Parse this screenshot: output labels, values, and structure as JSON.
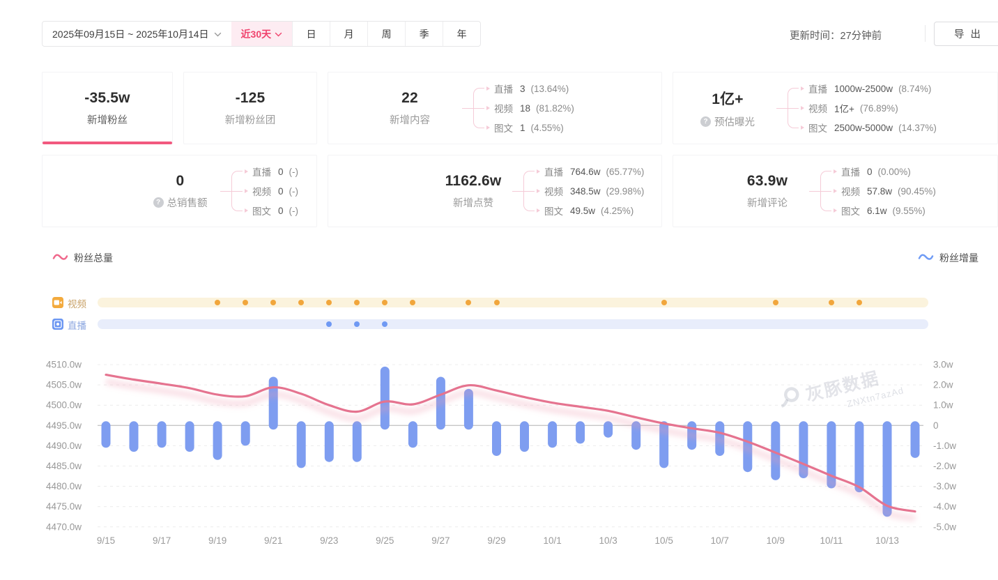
{
  "toolbar": {
    "date_range": "2025年09月15日 ~ 2025年10月14日",
    "quick_range": "近30天",
    "period_tabs": [
      "日",
      "月",
      "周",
      "季",
      "年"
    ],
    "update_time": "更新时间：27分钟前",
    "export_label": "导出"
  },
  "stats": {
    "row1": [
      {
        "value": "-35.5w",
        "label": "新增粉丝",
        "active": true
      },
      {
        "value": "-125",
        "label": "新增粉丝团"
      },
      {
        "value": "22",
        "label": "新增内容",
        "breakdown": [
          {
            "name": "直播",
            "value": "3",
            "pct": "(13.64%)"
          },
          {
            "name": "视频",
            "value": "18",
            "pct": "(81.82%)"
          },
          {
            "name": "图文",
            "value": "1",
            "pct": "(4.55%)"
          }
        ]
      },
      {
        "value": "1亿+",
        "label": "预估曝光",
        "help": true,
        "breakdown": [
          {
            "name": "直播",
            "value": "1000w-2500w",
            "pct": "(8.74%)"
          },
          {
            "name": "视频",
            "value": "1亿+",
            "pct": "(76.89%)"
          },
          {
            "name": "图文",
            "value": "2500w-5000w",
            "pct": "(14.37%)"
          }
        ]
      }
    ],
    "row2": [
      {
        "value": "0",
        "label": "总销售额",
        "help": true,
        "breakdown": [
          {
            "name": "直播",
            "value": "0",
            "pct": "(-)"
          },
          {
            "name": "视频",
            "value": "0",
            "pct": "(-)"
          },
          {
            "name": "图文",
            "value": "0",
            "pct": "(-)"
          }
        ]
      },
      {
        "value": "1162.6w",
        "label": "新增点赞",
        "breakdown": [
          {
            "name": "直播",
            "value": "764.6w",
            "pct": "(65.77%)"
          },
          {
            "name": "视频",
            "value": "348.5w",
            "pct": "(29.98%)"
          },
          {
            "name": "图文",
            "value": "49.5w",
            "pct": "(4.25%)"
          }
        ]
      },
      {
        "value": "63.9w",
        "label": "新增评论",
        "breakdown": [
          {
            "name": "直播",
            "value": "0",
            "pct": "(0.00%)"
          },
          {
            "name": "视频",
            "value": "57.8w",
            "pct": "(90.45%)"
          },
          {
            "name": "图文",
            "value": "6.1w",
            "pct": "(9.55%)"
          }
        ]
      }
    ]
  },
  "legend": {
    "left": "粉丝总量",
    "right": "粉丝增量"
  },
  "timeline": {
    "video_label": "视频",
    "live_label": "直播"
  },
  "watermark": {
    "brand": "灰豚数据",
    "code": "ZNXtn7azAd"
  },
  "colors": {
    "accent_pink": "#f0436d",
    "line_rose": "#e5738f",
    "bar_blue": "#7e9df0",
    "video_orange": "#f1a63c",
    "live_blue": "#6f99f3"
  },
  "chart_data": {
    "type": "line+bar",
    "x": [
      "9/15",
      "9/16",
      "9/17",
      "9/18",
      "9/19",
      "9/20",
      "9/21",
      "9/22",
      "9/23",
      "9/24",
      "9/25",
      "9/26",
      "9/27",
      "9/28",
      "9/29",
      "9/30",
      "10/1",
      "10/2",
      "10/3",
      "10/4",
      "10/5",
      "10/6",
      "10/7",
      "10/8",
      "10/9",
      "10/10",
      "10/11",
      "10/12",
      "10/13",
      "10/14"
    ],
    "x_tick_every": 2,
    "grid": "dashed horizontal, solid zero line",
    "legend_position": "above chart, left and right",
    "series": [
      {
        "name": "粉丝总量",
        "type": "line",
        "axis": "left",
        "color": "#e5738f",
        "values": [
          4507.5,
          4506.3,
          4505.3,
          4504.2,
          4502.6,
          4502.2,
          4504.4,
          4502.8,
          4500.0,
          4498.4,
          4500.9,
          4500.2,
          4502.6,
          4504.9,
          4503.6,
          4502.0,
          4500.6,
          4499.6,
          4498.6,
          4497.0,
          4495.5,
          4494.3,
          4493.2,
          4491.0,
          4488.3,
          4485.5,
          4482.6,
          4479.8,
          4475.2,
          4473.8
        ]
      },
      {
        "name": "粉丝增量",
        "type": "bar",
        "axis": "right",
        "color": "#7e9df0",
        "values": [
          -1.1,
          -1.3,
          -1.1,
          -1.3,
          -1.7,
          -1.0,
          2.4,
          -2.1,
          -1.8,
          -1.8,
          2.9,
          -1.1,
          2.4,
          1.8,
          -1.5,
          -1.3,
          -1.1,
          -0.9,
          -0.6,
          -1.2,
          -2.1,
          -1.2,
          -1.5,
          -2.3,
          -2.7,
          -2.6,
          -3.1,
          -3.3,
          -4.5,
          -1.6
        ]
      }
    ],
    "left_axis": {
      "unit": "w",
      "min": 4470,
      "max": 4510,
      "ticks": [
        "4510.0w",
        "4505.0w",
        "4500.0w",
        "4495.0w",
        "4490.0w",
        "4485.0w",
        "4480.0w",
        "4475.0w",
        "4470.0w"
      ]
    },
    "right_axis": {
      "unit": "w",
      "min": -5,
      "max": 3,
      "ticks": [
        "3.0w",
        "2.0w",
        "1.0w",
        "0",
        "-1.0w",
        "-2.0w",
        "-3.0w",
        "-4.0w",
        "-5.0w"
      ]
    },
    "markers": {
      "video_days": [
        "9/19",
        "9/20",
        "9/21",
        "9/22",
        "9/23",
        "9/24",
        "9/25",
        "9/26",
        "9/28",
        "9/29",
        "10/5",
        "10/9",
        "10/11",
        "10/12"
      ],
      "live_days": [
        "9/23",
        "9/24",
        "9/25"
      ]
    }
  }
}
